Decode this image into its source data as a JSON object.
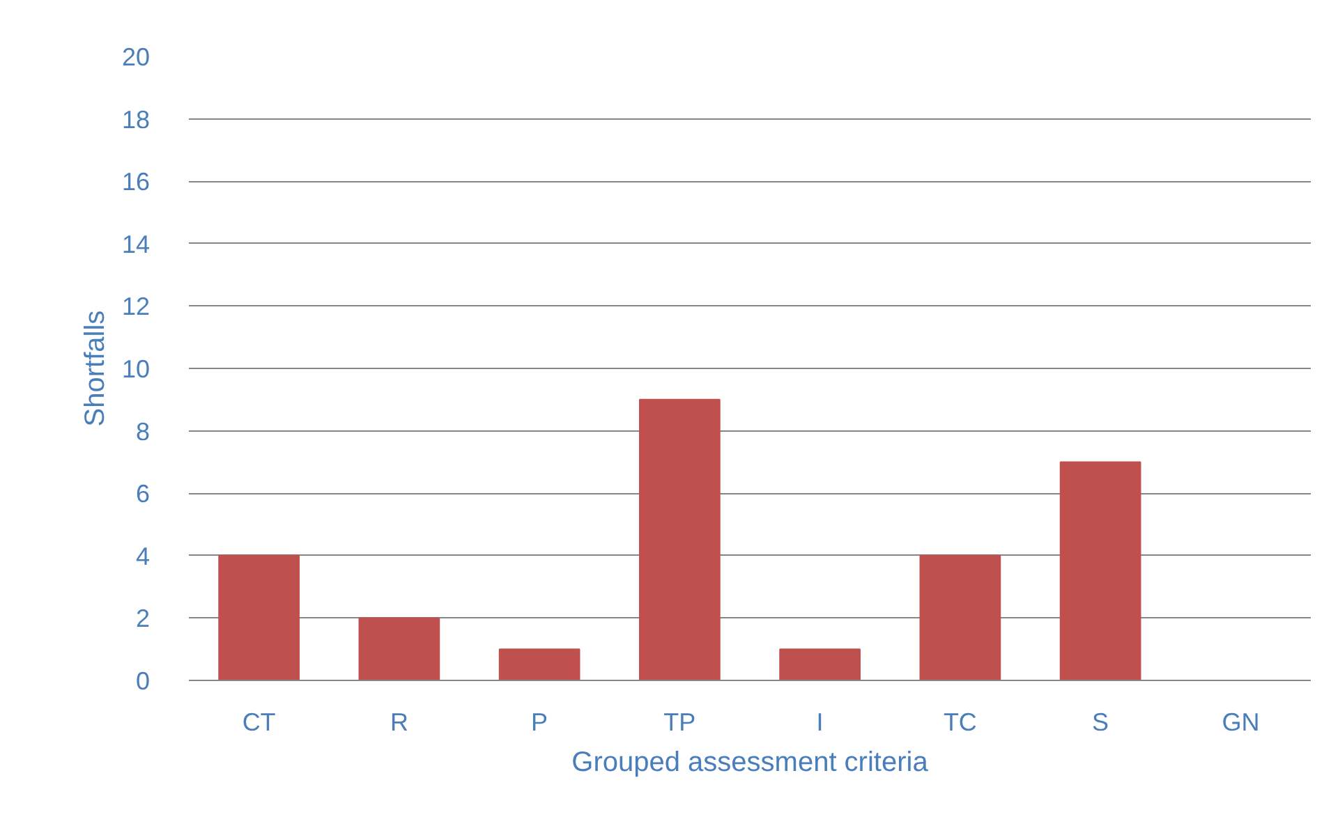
{
  "chart_data": {
    "type": "bar",
    "xlabel": "Grouped assessment criteria",
    "ylabel": "Shortfalls",
    "categories": [
      "CT",
      "R",
      "P",
      "TP",
      "I",
      "TC",
      "S",
      "GN"
    ],
    "values": [
      4,
      2,
      1,
      9,
      1,
      4,
      7,
      0
    ],
    "color": "#c0504d",
    "ylim": [
      0,
      20
    ],
    "yticks": [
      0,
      2,
      4,
      6,
      8,
      10,
      12,
      14,
      16,
      18,
      20
    ],
    "grid": "y"
  }
}
